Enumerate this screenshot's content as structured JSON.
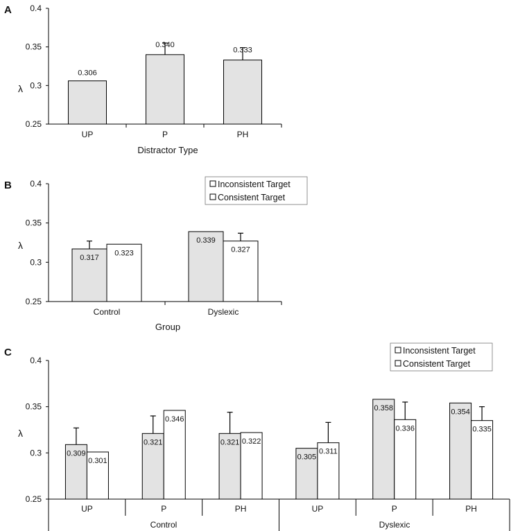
{
  "colors": {
    "bar_fill_inconsistent": "#e3e3e3",
    "bar_fill_consistent": "#ffffff",
    "stroke": "#000000"
  },
  "chart_data": [
    {
      "panel": "A",
      "type": "bar",
      "categories": [
        "UP",
        "P",
        "PH"
      ],
      "series": [
        {
          "name": "",
          "values": [
            0.306,
            0.34,
            0.333
          ],
          "error": [
            null,
            0.015,
            0.016
          ]
        }
      ],
      "value_labels": [
        "0.306",
        "0.340",
        "0.333"
      ],
      "xlabel": "Distractor Type",
      "ylabel": "λ",
      "ylim": [
        0.25,
        0.4
      ],
      "yticks": [
        "0.25",
        "0.3",
        "0.35",
        "0.4"
      ],
      "legend": null
    },
    {
      "panel": "B",
      "type": "bar",
      "categories": [
        "Control",
        "Dyslexic"
      ],
      "series": [
        {
          "name": "Inconsistent Target",
          "values": [
            0.317,
            0.339
          ],
          "error": [
            0.01,
            null
          ]
        },
        {
          "name": "Consistent Target",
          "values": [
            0.323,
            0.327
          ],
          "error": [
            null,
            0.01
          ]
        }
      ],
      "value_labels": [
        [
          "0.317",
          "0.339"
        ],
        [
          "0.323",
          "0.327"
        ]
      ],
      "xlabel": "Group",
      "ylabel": "λ",
      "ylim": [
        0.25,
        0.4
      ],
      "yticks": [
        "0.25",
        "0.3",
        "0.35",
        "0.4"
      ],
      "legend": "top-center"
    },
    {
      "panel": "C",
      "type": "bar",
      "groups": [
        "Control",
        "Dyslexic"
      ],
      "categories": [
        "UP",
        "P",
        "PH",
        "UP",
        "P",
        "PH"
      ],
      "series": [
        {
          "name": "Inconsistent Target",
          "values": [
            0.309,
            0.321,
            0.321,
            0.305,
            0.358,
            0.354
          ],
          "error": [
            0.018,
            0.019,
            0.023,
            null,
            null,
            null
          ]
        },
        {
          "name": "Consistent Target",
          "values": [
            0.301,
            0.346,
            0.322,
            0.311,
            0.336,
            0.335
          ],
          "error": [
            null,
            null,
            null,
            0.022,
            0.019,
            0.015
          ]
        }
      ],
      "value_labels": [
        [
          "0.309",
          "0.321",
          "0.321",
          "0.305",
          "0.358",
          "0.354"
        ],
        [
          "0.301",
          "0.346",
          "0.322",
          "0.311",
          "0.336",
          "0.335"
        ]
      ],
      "xlabel": "",
      "ylabel": "λ",
      "ylim": [
        0.25,
        0.4
      ],
      "yticks": [
        "0.25",
        "0.3",
        "0.35",
        "0.4"
      ],
      "legend": "top-right"
    }
  ]
}
